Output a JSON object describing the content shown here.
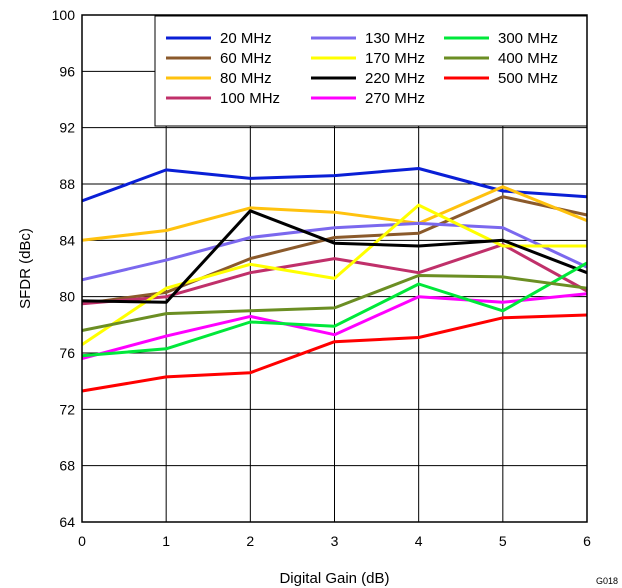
{
  "chart_data": {
    "type": "line",
    "title": "",
    "xlabel": "Digital Gain (dB)",
    "ylabel": "SFDR (dBc)",
    "xlim": [
      0,
      6
    ],
    "ylim": [
      64,
      100
    ],
    "x_ticks": [
      0,
      1,
      2,
      3,
      4,
      5,
      6
    ],
    "y_ticks": [
      64,
      68,
      72,
      76,
      80,
      84,
      88,
      92,
      96,
      100
    ],
    "grid": true,
    "legend_position": "top-right",
    "figure_code": "G018",
    "x": [
      0,
      1,
      2,
      3,
      4,
      5,
      6
    ],
    "series": [
      {
        "name": "20 MHz",
        "color": "#0a1fd6",
        "values": [
          86.8,
          89.0,
          88.4,
          88.6,
          89.1,
          87.5,
          87.1
        ]
      },
      {
        "name": "60 MHz",
        "color": "#8b5a2b",
        "values": [
          79.5,
          80.3,
          82.7,
          84.2,
          84.5,
          87.1,
          85.8
        ]
      },
      {
        "name": "80 MHz",
        "color": "#ffc20e",
        "values": [
          84.0,
          84.7,
          86.3,
          86.0,
          85.2,
          87.8,
          85.4
        ]
      },
      {
        "name": "100 MHz",
        "color": "#c0306a",
        "values": [
          79.5,
          80.0,
          81.7,
          82.7,
          81.7,
          83.7,
          80.4
        ]
      },
      {
        "name": "130 MHz",
        "color": "#7b68ee",
        "values": [
          81.2,
          82.6,
          84.2,
          84.9,
          85.2,
          84.9,
          82.1
        ]
      },
      {
        "name": "170 MHz",
        "color": "#ffff00",
        "values": [
          76.6,
          80.6,
          82.3,
          81.3,
          86.5,
          83.6,
          83.6
        ]
      },
      {
        "name": "220 MHz",
        "color": "#000000",
        "values": [
          79.7,
          79.6,
          86.1,
          83.8,
          83.6,
          84.0,
          81.7
        ]
      },
      {
        "name": "270 MHz",
        "color": "#ff00ff",
        "values": [
          75.6,
          77.2,
          78.6,
          77.3,
          80.0,
          79.6,
          80.2
        ]
      },
      {
        "name": "300 MHz",
        "color": "#00e83a",
        "values": [
          75.8,
          76.3,
          78.2,
          77.9,
          80.9,
          79.0,
          82.4
        ]
      },
      {
        "name": "400 MHz",
        "color": "#6b8e23",
        "values": [
          77.6,
          78.8,
          79.0,
          79.2,
          81.5,
          81.4,
          80.6
        ]
      },
      {
        "name": "500 MHz",
        "color": "#ff0000",
        "values": [
          73.3,
          74.3,
          74.6,
          76.8,
          77.1,
          78.5,
          78.7
        ]
      }
    ]
  }
}
